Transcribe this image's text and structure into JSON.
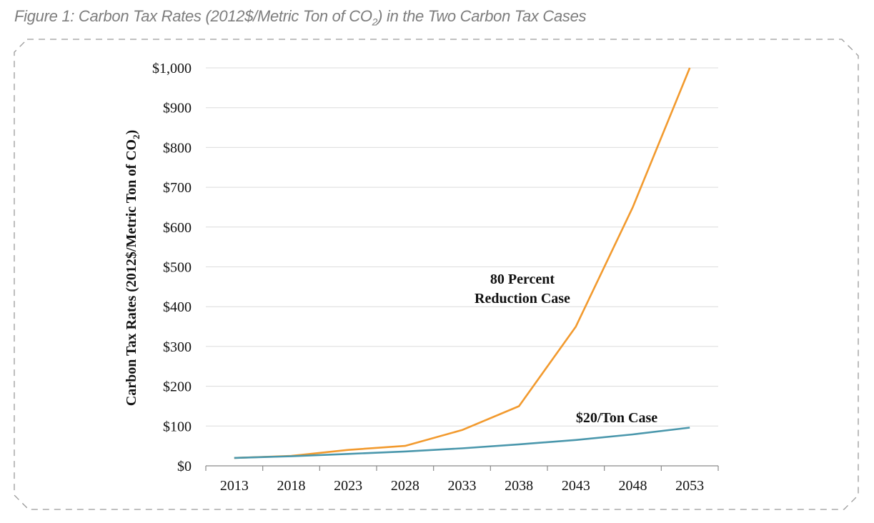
{
  "caption": {
    "prefix": "Figure 1: Carbon Tax Rates (2012$/Metric Ton of CO",
    "sub": "2",
    "suffix": ") in the Two Carbon Tax Cases"
  },
  "chart_data": {
    "type": "line",
    "x": [
      2013,
      2018,
      2023,
      2028,
      2033,
      2038,
      2043,
      2048,
      2053
    ],
    "x_tick_labels": [
      "2013",
      "2018",
      "2023",
      "2028",
      "2033",
      "2038",
      "2043",
      "2048",
      "2053"
    ],
    "ylim": [
      0,
      1000
    ],
    "y_ticks": [
      0,
      100,
      200,
      300,
      400,
      500,
      600,
      700,
      800,
      900,
      1000
    ],
    "y_tick_labels": [
      "$0",
      "$100",
      "$200",
      "$300",
      "$400",
      "$500",
      "$600",
      "$700",
      "$800",
      "$900",
      "$1,000"
    ],
    "ylabel": {
      "main": "Carbon Tax Rates (2012$/Metric Ton of CO",
      "sub": "2",
      "end": ")"
    },
    "grid": true,
    "series": [
      {
        "color": "#f29a2e",
        "values": [
          20,
          25,
          40,
          50,
          90,
          150,
          350,
          650,
          1000
        ],
        "annotation_lines": [
          "80 Percent",
          "Reduction Case"
        ]
      },
      {
        "color": "#4a97ac",
        "values": [
          20,
          24,
          30,
          36,
          44,
          54,
          65,
          79,
          96
        ],
        "annotation_lines": [
          "$20/Ton Case"
        ]
      }
    ]
  }
}
